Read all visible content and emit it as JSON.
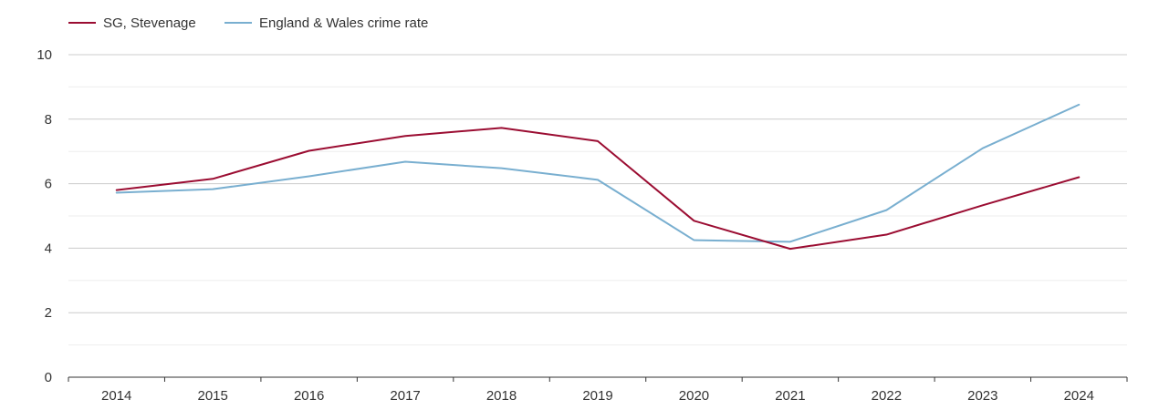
{
  "chart_data": {
    "type": "line",
    "title": "",
    "xlabel": "",
    "ylabel": "",
    "x": [
      "2014",
      "2015",
      "2016",
      "2017",
      "2018",
      "2019",
      "2020",
      "2021",
      "2022",
      "2023",
      "2024"
    ],
    "ylim": [
      0,
      10
    ],
    "yticks": [
      "0",
      "2",
      "4",
      "6",
      "8",
      "10"
    ],
    "grid": true,
    "legend_position": "top-left",
    "series": [
      {
        "name": "SG, Stevenage",
        "color": "#9b0d32",
        "values": [
          5.8,
          6.15,
          7.02,
          7.48,
          7.73,
          7.32,
          4.85,
          3.98,
          4.42,
          5.33,
          6.2
        ]
      },
      {
        "name": "England & Wales crime rate",
        "color": "#79afd0",
        "values": [
          5.72,
          5.83,
          6.23,
          6.68,
          6.48,
          6.12,
          4.25,
          4.2,
          5.18,
          7.1,
          8.45
        ]
      }
    ]
  }
}
